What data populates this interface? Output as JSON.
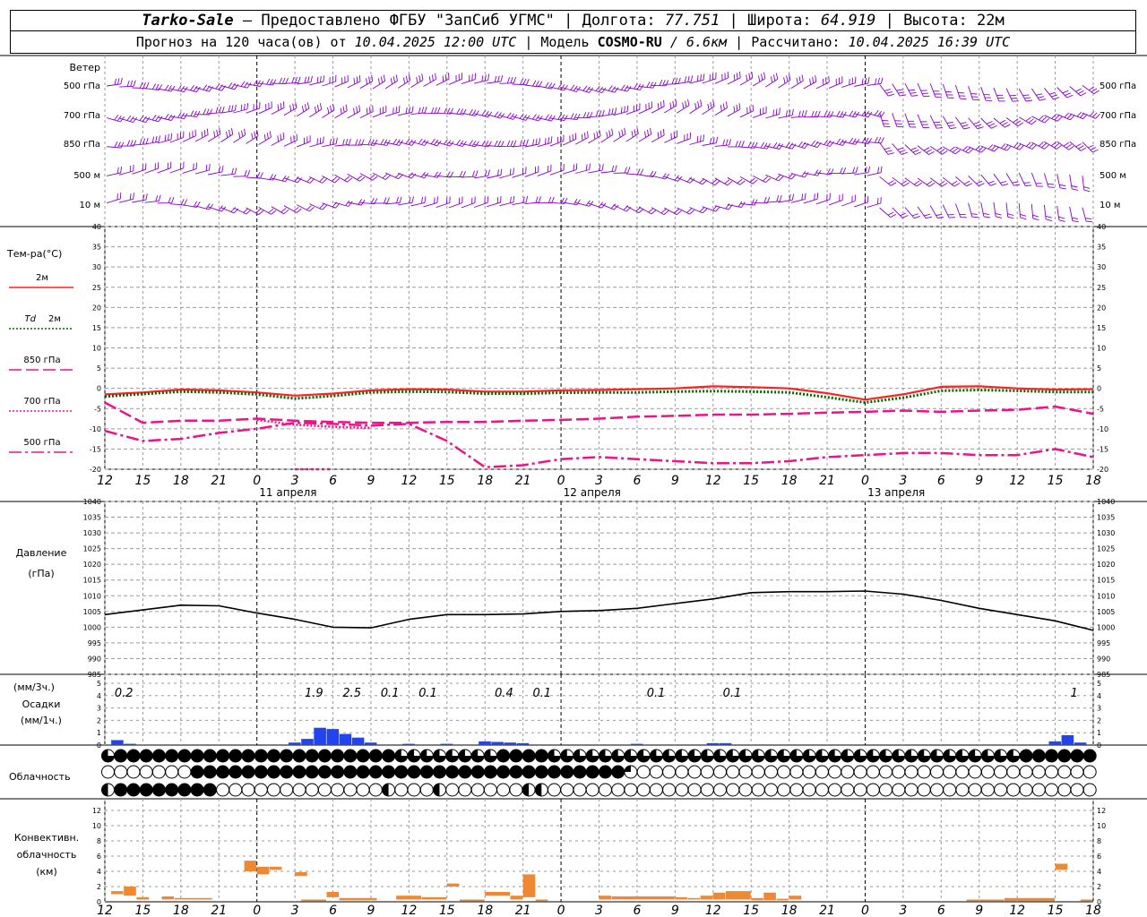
{
  "header": {
    "station": "Tarko-Sale",
    "dash": "–",
    "provider": "Предоставлено ФГБУ \"ЗапСиб УГМС\"",
    "lon_label": "Долгота:",
    "lon_value": "77.751",
    "lat_label": "Широта:",
    "lat_value": "64.919",
    "alt_label": "Высота:",
    "alt_value": "22м",
    "forecast_label": "Прогноз на 120 часа(ов) от",
    "forecast_time": "10.04.2025 12:00 UTC",
    "model_label": "Модель",
    "model_name": "COSMO-RU",
    "model_res": "/ 6.6км",
    "calc_label": "Рассчитано:",
    "calc_time": "10.04.2025 16:39 UTC"
  },
  "wind_panel": {
    "title": "Ветер",
    "levels": [
      "500 гПа",
      "700 гПа",
      "850 гПа",
      "500 м",
      "10 м"
    ],
    "barb_color": "#8800cc"
  },
  "colors": {
    "t2m": "#ff2020",
    "td2m": "#006600",
    "t850": "#ee1188",
    "t700": "#ee1188",
    "t500": "#ee1188",
    "pressure": "#000000",
    "precip": "#2244ee",
    "convective": "#ee8833",
    "grid": "#9a9a9a",
    "day_line": "#000000"
  },
  "chart_data": [
    {
      "type": "line",
      "title": "Тем-ра(°C)",
      "x_hours": [
        0,
        3,
        6,
        9,
        12,
        15,
        18,
        21,
        24,
        27,
        30,
        33,
        36,
        39,
        42,
        45,
        48,
        51,
        54,
        57,
        60,
        63,
        66,
        69,
        72,
        75,
        78
      ],
      "x_tick_labels": [
        "12",
        "15",
        "18",
        "21",
        "0",
        "3",
        "6",
        "9",
        "12",
        "15",
        "18",
        "21",
        "0",
        "3",
        "6",
        "9",
        "12",
        "15",
        "18",
        "21",
        "0",
        "3",
        "6",
        "9",
        "12",
        "15",
        "18"
      ],
      "day_labels": [
        {
          "hour": 24,
          "label": "11 апреля"
        },
        {
          "hour": 48,
          "label": "12 апреля"
        },
        {
          "hour": 72,
          "label": "13 апреля"
        }
      ],
      "ylim": [
        -20,
        40
      ],
      "y_ticks": [
        40,
        35,
        30,
        25,
        20,
        15,
        10,
        5,
        0,
        -5,
        -10,
        -15,
        -20
      ],
      "legend": [
        {
          "key": "t2m",
          "label": "2м"
        },
        {
          "key": "td2m",
          "label_it": "Td",
          "label": "2м"
        },
        {
          "key": "t850",
          "label": "850 гПа"
        },
        {
          "key": "t700",
          "label": "700 гПа"
        },
        {
          "key": "t500",
          "label": "500 гПа"
        }
      ],
      "series": [
        {
          "key": "t2m",
          "values": [
            -1.5,
            -1.0,
            -0.3,
            -0.5,
            -1.0,
            -1.8,
            -1.3,
            -0.5,
            -0.2,
            -0.3,
            -0.8,
            -0.8,
            -0.5,
            -0.4,
            -0.2,
            0.0,
            0.5,
            0.3,
            0.0,
            -1.2,
            -2.8,
            -1.5,
            0.4,
            0.5,
            0.0,
            -0.3,
            -0.2
          ]
        },
        {
          "key": "td2m",
          "values": [
            -2.0,
            -1.4,
            -0.8,
            -1.0,
            -1.5,
            -2.5,
            -1.9,
            -1.0,
            -0.8,
            -0.9,
            -1.3,
            -1.3,
            -1.1,
            -1.0,
            -1.0,
            -0.8,
            -0.7,
            -0.8,
            -1.0,
            -2.2,
            -3.5,
            -2.3,
            -0.6,
            -0.4,
            -0.6,
            -0.9,
            -0.9
          ]
        },
        {
          "key": "t850",
          "values": [
            -3.5,
            -8.5,
            -8.0,
            -8.0,
            -7.5,
            -8.0,
            -8.3,
            -8.5,
            -8.5,
            -8.3,
            -8.3,
            -8.0,
            -7.8,
            -7.5,
            -7.0,
            -6.8,
            -6.5,
            -6.5,
            -6.3,
            -6.0,
            -5.8,
            -5.5,
            -5.8,
            -5.5,
            -5.3,
            -4.5,
            -6.3
          ]
        },
        {
          "key": "t700",
          "values": [
            null,
            null,
            null,
            null,
            -7.8,
            -9.0,
            -9.5,
            -9.8,
            null,
            null,
            null,
            null,
            null,
            null,
            null,
            null,
            null,
            null,
            null,
            null,
            null,
            null,
            null,
            null,
            null,
            null,
            null
          ]
        },
        {
          "key": "t500",
          "values": [
            -10.5,
            -13.0,
            -12.5,
            -11.0,
            -10.0,
            -8.5,
            -8.8,
            -9.2,
            -8.8,
            -13.0,
            -19.5,
            -19.0,
            -17.5,
            -17.0,
            -17.5,
            -18.0,
            -18.5,
            -18.5,
            -18.0,
            -17.0,
            -16.5,
            -16.0,
            -16.0,
            -16.5,
            -16.5,
            -15.0,
            -17.0
          ]
        },
        {
          "key": "t500_low",
          "values": [
            null,
            null,
            null,
            null,
            null,
            -20.0,
            -20.0,
            null,
            null,
            null,
            null,
            null,
            null,
            null,
            null,
            null,
            null,
            null,
            null,
            null,
            null,
            null,
            null,
            null,
            null,
            null,
            null
          ]
        }
      ]
    },
    {
      "type": "line",
      "title": "Давление",
      "ylabel": "(гПа)",
      "ylim": [
        985,
        1040
      ],
      "y_ticks": [
        1040,
        1035,
        1030,
        1025,
        1020,
        1015,
        1010,
        1005,
        1000,
        995,
        990,
        985
      ],
      "x_hours": [
        0,
        3,
        6,
        9,
        12,
        15,
        18,
        21,
        24,
        27,
        30,
        33,
        36,
        39,
        42,
        45,
        48,
        51,
        54,
        57,
        60,
        63,
        66,
        69,
        72,
        75,
        78
      ],
      "series": [
        {
          "key": "pressure",
          "values": [
            1004.0,
            1005.5,
            1007.0,
            1006.8,
            1004.5,
            1002.5,
            1000.0,
            999.8,
            1002.5,
            1004.0,
            1004.0,
            1004.2,
            1005.0,
            1005.3,
            1006.0,
            1007.5,
            1009.0,
            1011.0,
            1011.3,
            1011.3,
            1011.5,
            1010.5,
            1008.5,
            1006.0,
            1004.0,
            1002.0,
            999.0
          ]
        }
      ]
    },
    {
      "type": "bar",
      "title": "Осадки",
      "ylabel_top": "(мм/3ч.)",
      "ylabel_bottom": "(мм/1ч.)",
      "ylim": [
        0,
        5
      ],
      "y_ticks": [
        5,
        4,
        3,
        2,
        1,
        0
      ],
      "hourly": [
        {
          "h": 1,
          "v": 0.4
        },
        {
          "h": 2,
          "v": 0.1
        },
        {
          "h": 15,
          "v": 0.2
        },
        {
          "h": 16,
          "v": 0.5
        },
        {
          "h": 17,
          "v": 1.4
        },
        {
          "h": 18,
          "v": 1.3
        },
        {
          "h": 19,
          "v": 0.9
        },
        {
          "h": 20,
          "v": 0.6
        },
        {
          "h": 21,
          "v": 0.2
        },
        {
          "h": 24,
          "v": 0.1
        },
        {
          "h": 27,
          "v": 0.1
        },
        {
          "h": 30,
          "v": 0.3
        },
        {
          "h": 31,
          "v": 0.25
        },
        {
          "h": 32,
          "v": 0.2
        },
        {
          "h": 33,
          "v": 0.15
        },
        {
          "h": 42,
          "v": 0.1
        },
        {
          "h": 43,
          "v": 0.05
        },
        {
          "h": 48,
          "v": 0.15
        },
        {
          "h": 49,
          "v": 0.15
        },
        {
          "h": 54,
          "v": 0.05
        },
        {
          "h": 75,
          "v": 0.3
        },
        {
          "h": 76,
          "v": 0.8
        },
        {
          "h": 77,
          "v": 0.2
        }
      ],
      "three_hour_totals": [
        {
          "h": 1.5,
          "label": "0.2"
        },
        {
          "h": 16.5,
          "label": "1.9"
        },
        {
          "h": 19.5,
          "label": "2.5"
        },
        {
          "h": 22.5,
          "label": "0.1"
        },
        {
          "h": 25.5,
          "label": "0.1"
        },
        {
          "h": 31.5,
          "label": "0.4"
        },
        {
          "h": 34.5,
          "label": "0.1"
        },
        {
          "h": 43.5,
          "label": "0.1"
        },
        {
          "h": 49.5,
          "label": "0.1"
        },
        {
          "h": 76.5,
          "label": "1"
        }
      ]
    },
    {
      "type": "table",
      "title": "Облачность",
      "rows": [
        "3444444444444444444444433333333444433333333333333333333333333333333333334444444444444444444444444",
        "0000000444444444444444444444444444444444420000000000000000000000000000000000000233333333444444444",
        "1444444440000000000000100010000001100000000000000000000000000000000000000000000001000000000000000"
      ]
    },
    {
      "type": "bar",
      "title": "Конвективн. облачность",
      "ylabel": "(км)",
      "ylim": [
        0,
        14
      ],
      "y_ticks": [
        12,
        10,
        8,
        6,
        4,
        2,
        0
      ],
      "bars": [
        {
          "h0": 0.5,
          "h1": 1.5,
          "bottom": 1.0,
          "top": 1.4
        },
        {
          "h0": 1.5,
          "h1": 2.5,
          "bottom": 0.8,
          "top": 2.0
        },
        {
          "h0": 2.5,
          "h1": 3.5,
          "bottom": 0.3,
          "top": 0.6
        },
        {
          "h0": 4.5,
          "h1": 5.5,
          "bottom": 0.3,
          "top": 0.7
        },
        {
          "h0": 5.5,
          "h1": 8.5,
          "bottom": 0.3,
          "top": 0.5
        },
        {
          "h0": 11.0,
          "h1": 12.0,
          "bottom": 4.0,
          "top": 5.4
        },
        {
          "h0": 12.0,
          "h1": 13.0,
          "bottom": 3.6,
          "top": 4.6
        },
        {
          "h0": 13.0,
          "h1": 14.0,
          "bottom": 4.2,
          "top": 4.6
        },
        {
          "h0": 15.0,
          "h1": 16.0,
          "bottom": 3.4,
          "top": 3.9
        },
        {
          "h0": 15.5,
          "h1": 17.5,
          "bottom": 0.1,
          "top": 0.3
        },
        {
          "h0": 17.5,
          "h1": 18.5,
          "bottom": 0.6,
          "top": 1.3
        },
        {
          "h0": 18.5,
          "h1": 21.5,
          "bottom": 0.2,
          "top": 0.5
        },
        {
          "h0": 23.0,
          "h1": 25.0,
          "bottom": 0.3,
          "top": 0.8
        },
        {
          "h0": 25.0,
          "h1": 27.0,
          "bottom": 0.3,
          "top": 0.6
        },
        {
          "h0": 27.0,
          "h1": 28.0,
          "bottom": 2.0,
          "top": 2.4
        },
        {
          "h0": 28.0,
          "h1": 30.0,
          "bottom": 0.1,
          "top": 0.3
        },
        {
          "h0": 30.0,
          "h1": 32.0,
          "bottom": 0.8,
          "top": 1.3
        },
        {
          "h0": 32.0,
          "h1": 33.0,
          "bottom": 0.3,
          "top": 0.8
        },
        {
          "h0": 33.0,
          "h1": 34.0,
          "bottom": 0.6,
          "top": 3.6
        },
        {
          "h0": 34.0,
          "h1": 35.0,
          "bottom": 0.1,
          "top": 0.3
        },
        {
          "h0": 39.0,
          "h1": 40.0,
          "bottom": 0.3,
          "top": 0.8
        },
        {
          "h0": 40.0,
          "h1": 45.0,
          "bottom": 0.3,
          "top": 0.7
        },
        {
          "h0": 45.0,
          "h1": 46.0,
          "bottom": 0.3,
          "top": 0.6
        },
        {
          "h0": 46.0,
          "h1": 47.0,
          "bottom": 0.3,
          "top": 0.5
        },
        {
          "h0": 47.0,
          "h1": 48.0,
          "bottom": 0.3,
          "top": 0.8
        },
        {
          "h0": 48.0,
          "h1": 49.0,
          "bottom": 0.3,
          "top": 1.2
        },
        {
          "h0": 49.0,
          "h1": 51.0,
          "bottom": 0.3,
          "top": 1.4
        },
        {
          "h0": 51.0,
          "h1": 52.0,
          "bottom": 0.2,
          "top": 0.5
        },
        {
          "h0": 52.0,
          "h1": 53.0,
          "bottom": 0.2,
          "top": 1.2
        },
        {
          "h0": 53.0,
          "h1": 54.0,
          "bottom": 0.2,
          "top": 0.4
        },
        {
          "h0": 54.0,
          "h1": 55.0,
          "bottom": 0.3,
          "top": 0.8
        },
        {
          "h0": 68.0,
          "h1": 71.0,
          "bottom": 0.1,
          "top": 0.3
        },
        {
          "h0": 71.0,
          "h1": 75.0,
          "bottom": 0.1,
          "top": 0.5
        },
        {
          "h0": 75.0,
          "h1": 76.0,
          "bottom": 4.2,
          "top": 5.0
        },
        {
          "h0": 77.0,
          "h1": 78.0,
          "bottom": 0.1,
          "top": 0.3
        }
      ]
    }
  ]
}
